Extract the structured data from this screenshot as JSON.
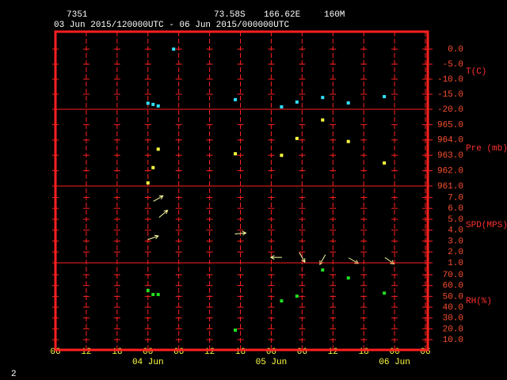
{
  "header": {
    "station": "7351",
    "latitude": "73.58S",
    "longitude": "166.62E",
    "elevation": "160M",
    "period": "03 Jun 2015/120000UTC - 06 Jun 2015/000000UTC"
  },
  "footer": "2",
  "x_axis": {
    "xlim": [
      "2015-06-03T06",
      "2015-06-06T06"
    ],
    "xticks": [
      {
        "value": "2015-06-03T06",
        "label": "06"
      },
      {
        "value": "2015-06-03T12",
        "label": "12"
      },
      {
        "value": "2015-06-03T18",
        "label": "18"
      },
      {
        "value": "2015-06-04T00",
        "label": "00"
      },
      {
        "value": "2015-06-04T06",
        "label": "06"
      },
      {
        "value": "2015-06-04T12",
        "label": "12"
      },
      {
        "value": "2015-06-04T18",
        "label": "18"
      },
      {
        "value": "2015-06-05T00",
        "label": "00"
      },
      {
        "value": "2015-06-05T06",
        "label": "06"
      },
      {
        "value": "2015-06-05T12",
        "label": "12"
      },
      {
        "value": "2015-06-05T18",
        "label": "18"
      },
      {
        "value": "2015-06-06T00",
        "label": "00"
      },
      {
        "value": "2015-06-06T06",
        "label": "06"
      }
    ],
    "date_labels": [
      {
        "value": "2015-06-04T00",
        "label": "04 Jun"
      },
      {
        "value": "2015-06-05T00",
        "label": "05 Jun"
      },
      {
        "value": "2015-06-06T00",
        "label": "06 Jun"
      }
    ]
  },
  "chart_data": [
    {
      "type": "scatter",
      "label": "T(C)",
      "color": "#30e0ff",
      "x": [
        "2015-06-04T00",
        "2015-06-04T01",
        "2015-06-04T02",
        "2015-06-04T05",
        "2015-06-04T17",
        "2015-06-05T02",
        "2015-06-05T05",
        "2015-06-05T10",
        "2015-06-05T15",
        "2015-06-05T22"
      ],
      "values": [
        -18.0,
        -18.4,
        -18.9,
        0.0,
        -16.8,
        -19.2,
        -17.6,
        -16.1,
        -17.9,
        -15.8
      ],
      "ylim": [
        -20,
        5.8
      ],
      "yticks": [
        {
          "value": 0,
          "label": "0.0"
        },
        {
          "value": -5,
          "label": "-5.0"
        },
        {
          "value": -10,
          "label": "-10.0"
        },
        {
          "value": -15,
          "label": "-15.0"
        },
        {
          "value": -20,
          "label": "-20.0"
        }
      ]
    },
    {
      "type": "scatter",
      "label": "Pre (mb)",
      "color": "#ffff40",
      "x": [
        "2015-06-04T00",
        "2015-06-04T01",
        "2015-06-04T02",
        "2015-06-04T17",
        "2015-06-05T02",
        "2015-06-05T05",
        "2015-06-05T10",
        "2015-06-05T15",
        "2015-06-05T22"
      ],
      "values": [
        961.2,
        962.2,
        963.4,
        963.1,
        963.0,
        964.1,
        965.3,
        963.9,
        962.5
      ],
      "ylim": [
        961,
        966
      ],
      "yticks": [
        {
          "value": 965,
          "label": "965.0"
        },
        {
          "value": 964,
          "label": "964.0"
        },
        {
          "value": 963,
          "label": "963.0"
        },
        {
          "value": 962,
          "label": "962.0"
        },
        {
          "value": 961,
          "label": "961.0"
        }
      ]
    },
    {
      "type": "vector",
      "label": "SPD(MPS)",
      "color": "#ffffa0",
      "x": [
        "2015-06-04T02",
        "2015-06-04T03",
        "2015-06-04T01",
        "2015-06-04T18",
        "2015-06-05T01",
        "2015-06-05T06",
        "2015-06-05T10",
        "2015-06-05T16",
        "2015-06-05T23"
      ],
      "values": [
        6.9,
        5.5,
        3.3,
        3.7,
        1.5,
        1.5,
        1.3,
        1.2,
        1.2
      ],
      "directions": [
        30,
        40,
        20,
        5,
        180,
        -60,
        -120,
        -30,
        -35
      ],
      "ylim": [
        1,
        8.05
      ],
      "yticks": [
        {
          "value": 7,
          "label": "7.0"
        },
        {
          "value": 6,
          "label": "6.0"
        },
        {
          "value": 5,
          "label": "5.0"
        },
        {
          "value": 4,
          "label": "4.0"
        },
        {
          "value": 3,
          "label": "3.0"
        },
        {
          "value": 2,
          "label": "2.0"
        },
        {
          "value": 1,
          "label": "1.0"
        }
      ]
    },
    {
      "type": "scatter",
      "label": "RH(%)",
      "color": "#20e020",
      "x": [
        "2015-06-04T00",
        "2015-06-04T01",
        "2015-06-04T02",
        "2015-06-04T17",
        "2015-06-05T02",
        "2015-06-05T05",
        "2015-06-05T10",
        "2015-06-05T15",
        "2015-06-05T22"
      ],
      "values": [
        55.4,
        51.7,
        51.7,
        18.8,
        45.8,
        50.2,
        74.4,
        67.0,
        53.0
      ],
      "ylim": [
        0.5,
        81
      ],
      "yticks": [
        {
          "value": 70,
          "label": "70.0"
        },
        {
          "value": 60,
          "label": "60.0"
        },
        {
          "value": 50,
          "label": "50.0"
        },
        {
          "value": 40,
          "label": "40.0"
        },
        {
          "value": 30,
          "label": "30.0"
        },
        {
          "value": 20,
          "label": "20.0"
        },
        {
          "value": 10,
          "label": "10.0"
        }
      ]
    }
  ]
}
